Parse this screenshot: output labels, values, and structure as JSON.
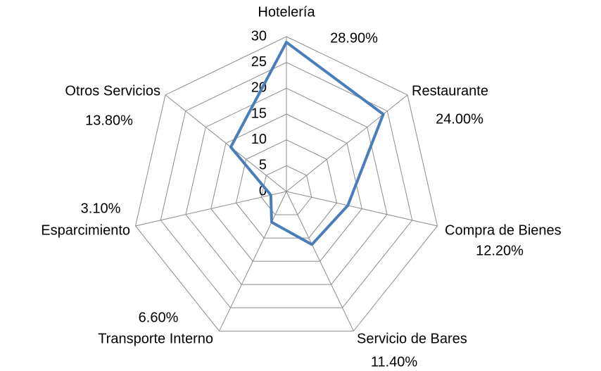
{
  "chart_data": {
    "type": "radar",
    "categories": [
      "Hotelería",
      "Restaurante",
      "Compra de Bienes",
      "Servicio de Bares",
      "Transporte Interno",
      "Esparcimiento",
      "Otros Servicios"
    ],
    "values": [
      28.9,
      24.0,
      12.2,
      11.4,
      6.6,
      3.1,
      13.8
    ],
    "value_labels": [
      "28.90%",
      "24.00%",
      "12.20%",
      "11.40%",
      "6.60%",
      "3.10%",
      "13.80%"
    ],
    "color": "#4a7ebb",
    "ylim": [
      0,
      30
    ],
    "yticks": [
      0,
      5,
      10,
      15,
      20,
      25,
      30
    ],
    "grid": true
  }
}
